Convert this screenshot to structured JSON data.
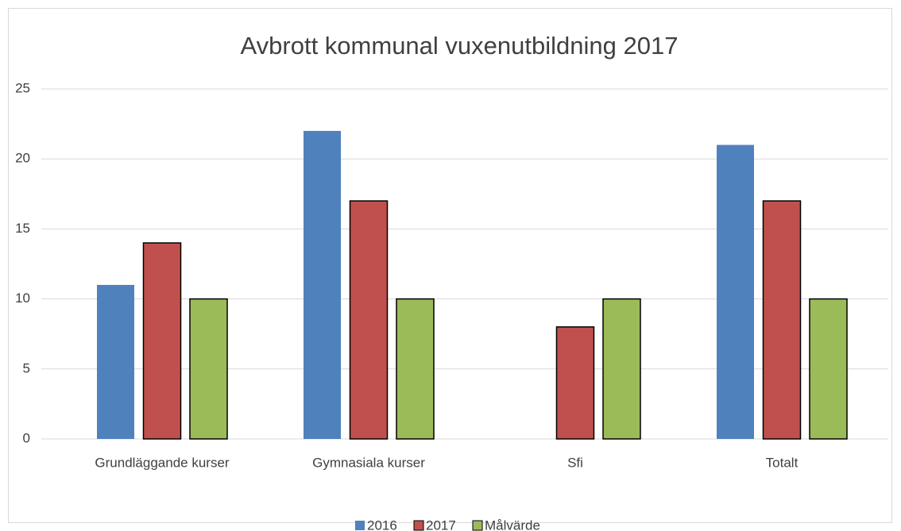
{
  "chart_data": {
    "type": "bar",
    "title": "Avbrott kommunal vuxenutbildning 2017",
    "categories": [
      "Grundläggande kurser",
      "Gymnasiala kurser",
      "Sfi",
      "Totalt"
    ],
    "series": [
      {
        "name": "2016",
        "color": "#4f81bd",
        "values": [
          11,
          22,
          null,
          21
        ]
      },
      {
        "name": "2017",
        "color": "#c0504d",
        "values": [
          14,
          17,
          8,
          17
        ]
      },
      {
        "name": "Målvärde",
        "color": "#9bbb59",
        "values": [
          10,
          10,
          10,
          10
        ]
      }
    ],
    "ylim": [
      0,
      25
    ],
    "yticks": [
      0,
      5,
      10,
      15,
      20,
      25
    ],
    "grid": true,
    "legend": "bottom"
  }
}
